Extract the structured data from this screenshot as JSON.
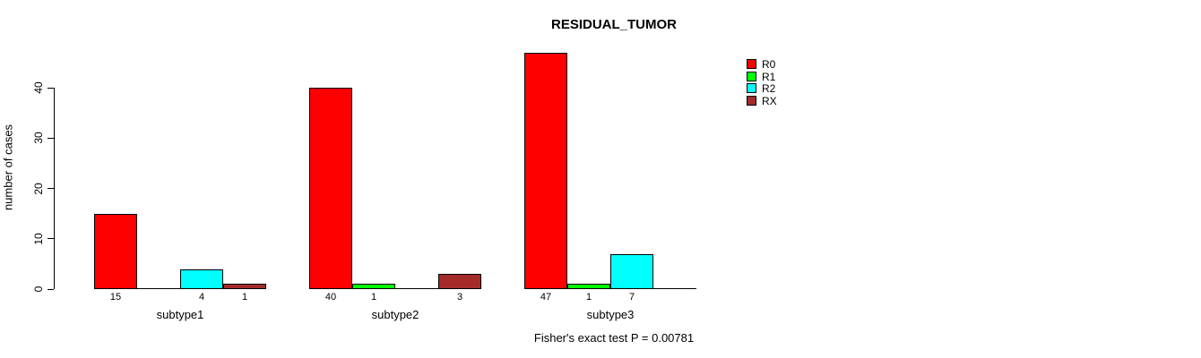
{
  "title": "RESIDUAL_TUMOR",
  "ylabel": "number of cases",
  "footer": "Fisher's exact test P = 0.00781",
  "legend": {
    "position": "right-of-plot",
    "border": "none",
    "items": [
      {
        "label": "R0",
        "color": "#FF0000"
      },
      {
        "label": "R1",
        "color": "#00FF00"
      },
      {
        "label": "R2",
        "color": "#00FFFF"
      },
      {
        "label": "RX",
        "color": "#A52A2A"
      }
    ]
  },
  "chart_data": {
    "type": "bar",
    "layout": "grouped",
    "title": "RESIDUAL_TUMOR",
    "xlabel": "",
    "ylabel": "number of cases",
    "categories": [
      "subtype1",
      "subtype2",
      "subtype3"
    ],
    "series": [
      {
        "name": "R0",
        "color": "#FF0000",
        "values": [
          15,
          40,
          47
        ]
      },
      {
        "name": "R1",
        "color": "#00FF00",
        "values": [
          0,
          1,
          1
        ]
      },
      {
        "name": "R2",
        "color": "#00FFFF",
        "values": [
          4,
          0,
          7
        ]
      },
      {
        "name": "RX",
        "color": "#A52A2A",
        "values": [
          1,
          3,
          0
        ]
      }
    ],
    "ylim": [
      0,
      40
    ],
    "yticks": [
      0,
      10,
      20,
      30,
      40
    ],
    "grid": false,
    "legend_position": "upper right",
    "value_labels": "non-zero bar values printed below baseline under each bar",
    "zero_value_bars": "drawn as flat line segments on the baseline",
    "annotation": "Fisher's exact test P = 0.00781"
  }
}
